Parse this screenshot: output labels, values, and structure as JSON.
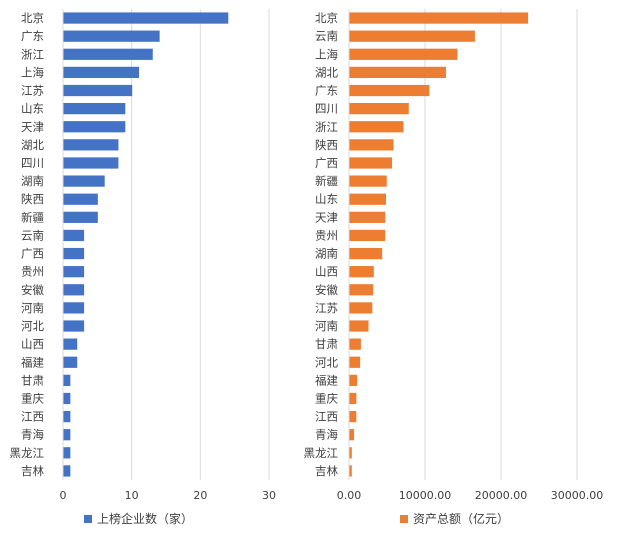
{
  "chart_data": [
    {
      "type": "bar",
      "orientation": "horizontal",
      "categories": [
        "北京",
        "广东",
        "浙江",
        "上海",
        "江苏",
        "山东",
        "天津",
        "湖北",
        "四川",
        "湖南",
        "陕西",
        "新疆",
        "云南",
        "广西",
        "贵州",
        "安徽",
        "河南",
        "河北",
        "山西",
        "福建",
        "甘肃",
        "重庆",
        "江西",
        "青海",
        "黑龙江",
        "吉林"
      ],
      "series": [
        {
          "name": "上榜企业数（家）",
          "color": "#4472c4",
          "values": [
            24,
            14,
            13,
            11,
            10,
            9,
            9,
            8,
            8,
            6,
            5,
            5,
            3,
            3,
            3,
            3,
            3,
            3,
            2,
            2,
            1,
            1,
            1,
            1,
            1,
            1
          ]
        }
      ],
      "xlim": [
        0,
        30
      ],
      "xticks": [
        "0",
        "10",
        "20",
        "30"
      ],
      "grid": true,
      "legend": "bottom"
    },
    {
      "type": "bar",
      "orientation": "horizontal",
      "categories": [
        "北京",
        "云南",
        "上海",
        "湖北",
        "广东",
        "四川",
        "浙江",
        "陕西",
        "广西",
        "新疆",
        "山东",
        "天津",
        "贵州",
        "湖南",
        "山西",
        "安徽",
        "江苏",
        "河南",
        "甘肃",
        "河北",
        "福建",
        "重庆",
        "江西",
        "青海",
        "黑龙江",
        "吉林"
      ],
      "series": [
        {
          "name": "资产总额（亿元）",
          "color": "#ed7d31",
          "values": [
            23500,
            16500,
            14200,
            12700,
            10500,
            7800,
            7100,
            5800,
            5600,
            4900,
            4800,
            4700,
            4700,
            4300,
            3200,
            3100,
            3000,
            2500,
            1500,
            1400,
            1000,
            900,
            900,
            600,
            300,
            300
          ]
        }
      ],
      "xlim": [
        0,
        30000
      ],
      "xticks": [
        "0.00",
        "10000.00",
        "20000.00",
        "30000.00"
      ],
      "grid": true,
      "legend": "bottom"
    }
  ]
}
